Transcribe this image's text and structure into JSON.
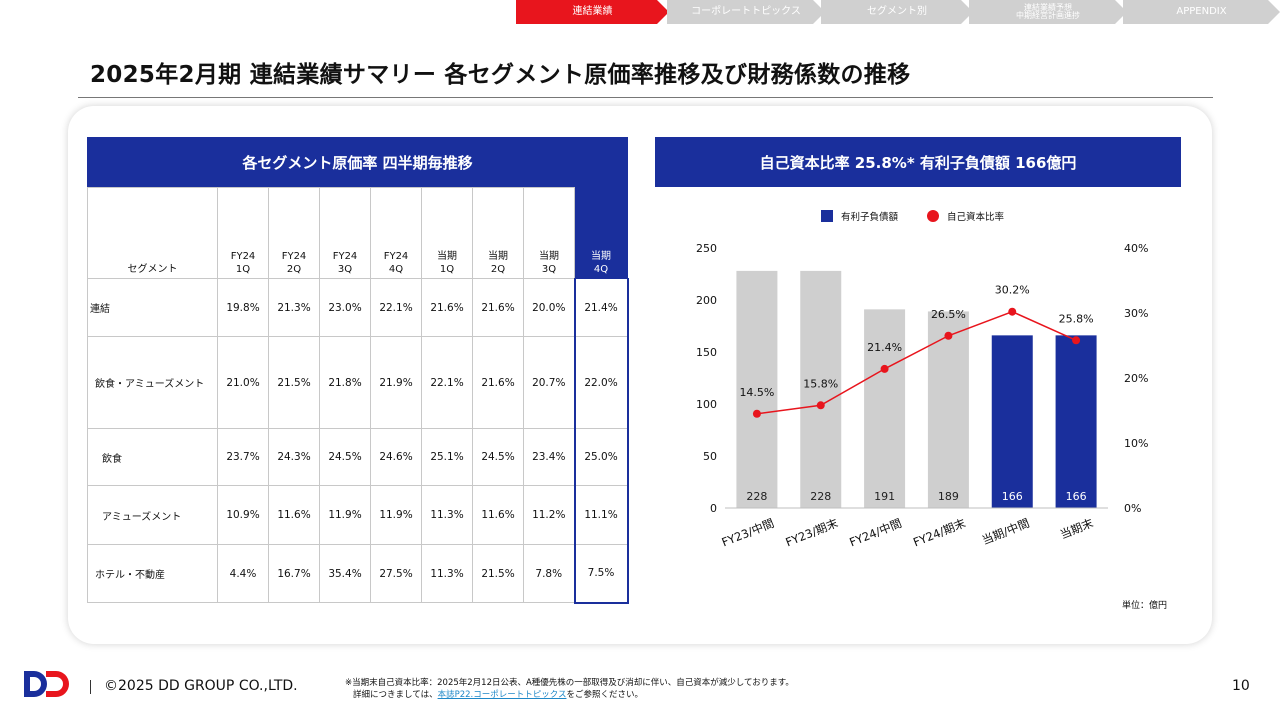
{
  "nav": {
    "tabs": [
      {
        "label": "連結業績",
        "active": true
      },
      {
        "label": "コーポレートトピックス",
        "active": false
      },
      {
        "label": "セグメント別",
        "active": false
      },
      {
        "label": "連結業績予想\n中期経営計画進捗",
        "active": false
      },
      {
        "label": "APPENDIX",
        "active": false
      }
    ]
  },
  "page": {
    "title": "2025年2月期 連結業績サマリー 各セグメント原価率推移及び財務係数の推移"
  },
  "table": {
    "title": "各セグメント原価率 四半期毎推移",
    "corner": "セグメント",
    "columns": [
      [
        "FY24",
        "1Q"
      ],
      [
        "FY24",
        "2Q"
      ],
      [
        "FY24",
        "3Q"
      ],
      [
        "FY24",
        "4Q"
      ],
      [
        "当期",
        "1Q"
      ],
      [
        "当期",
        "2Q"
      ],
      [
        "当期",
        "3Q"
      ],
      [
        "当期",
        "4Q"
      ]
    ],
    "rows": [
      {
        "label": "連結",
        "values": [
          "19.8%",
          "21.3%",
          "23.0%",
          "22.1%",
          "21.6%",
          "21.6%",
          "20.0%",
          "21.4%"
        ]
      },
      {
        "label": "飲食・アミューズメント",
        "values": [
          "21.0%",
          "21.5%",
          "21.8%",
          "21.9%",
          "22.1%",
          "21.6%",
          "20.7%",
          "22.0%"
        ]
      },
      {
        "label": "飲食",
        "values": [
          "23.7%",
          "24.3%",
          "24.5%",
          "24.6%",
          "25.1%",
          "24.5%",
          "23.4%",
          "25.0%"
        ]
      },
      {
        "label": "アミューズメント",
        "values": [
          "10.9%",
          "11.6%",
          "11.9%",
          "11.9%",
          "11.3%",
          "11.6%",
          "11.2%",
          "11.1%"
        ]
      },
      {
        "label": "ホテル・不動産",
        "values": [
          "4.4%",
          "16.7%",
          "35.4%",
          "27.5%",
          "11.3%",
          "21.5%",
          "7.8%",
          "7.5%"
        ]
      }
    ]
  },
  "chart_data": {
    "type": "bar",
    "title": "自己資本比率 25.8%* 有利子負債額 166億円",
    "categories": [
      "FY23/中間",
      "FY23/期末",
      "FY24/中間",
      "FY24/期末",
      "当期/中間",
      "当期末"
    ],
    "series": [
      {
        "name": "有利子負債額",
        "type": "bar",
        "axis": "left",
        "values": [
          228,
          228,
          191,
          189,
          166,
          166
        ],
        "value_labels": [
          "228",
          "228",
          "191",
          "189",
          "166",
          "166"
        ],
        "colors": [
          "#cfcfcf",
          "#cfcfcf",
          "#cfcfcf",
          "#cfcfcf",
          "#1a2f9c",
          "#1a2f9c"
        ]
      },
      {
        "name": "自己資本比率",
        "type": "line",
        "axis": "right",
        "color": "#e8151d",
        "values": [
          14.5,
          15.8,
          21.4,
          26.5,
          30.2,
          25.8
        ],
        "value_labels": [
          "14.5%",
          "15.8%",
          "21.4%",
          "26.5%",
          "30.2%",
          "25.8%"
        ]
      }
    ],
    "y_left": {
      "min": 0,
      "max": 250,
      "ticks": [
        "0",
        "50",
        "100",
        "150",
        "200",
        "250"
      ]
    },
    "y_right": {
      "min": 0,
      "max": 40,
      "ticks": [
        "0%",
        "10%",
        "20%",
        "30%",
        "40%"
      ]
    },
    "legend_position": "top-center",
    "grid": false,
    "unit": "単位：億円"
  },
  "footer": {
    "copyright": "©2025 DD GROUP CO.,LTD.",
    "note_line1": "※当期末自己資本比率：2025年2月12日公表、A種優先株の一部取得及び消却に伴い、自己資本が減少しております。",
    "note_prefix": "詳細につきましては、",
    "note_link": "本誌P22.コーポレートトピックス",
    "note_suffix": "をご参照ください。",
    "page_number": "10",
    "brand_colors": {
      "primary": "#1a2f9c",
      "accent": "#e8151d"
    }
  }
}
